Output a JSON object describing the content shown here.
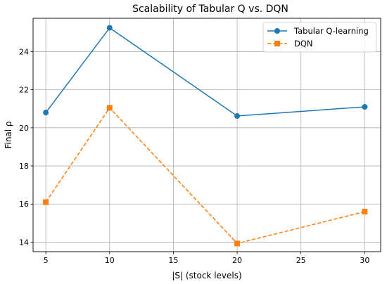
{
  "chart_data": {
    "type": "line",
    "title": "Scalability of Tabular Q vs. DQN",
    "xlabel": "|S| (stock levels)",
    "ylabel": "Final ρ",
    "x": [
      5,
      10,
      20,
      30
    ],
    "xlim": [
      4,
      31.25
    ],
    "ylim": [
      13.5,
      25.75
    ],
    "xticks": [
      5,
      10,
      15,
      20,
      25,
      30
    ],
    "yticks": [
      14,
      16,
      18,
      20,
      22,
      24
    ],
    "grid": true,
    "legend_position": "top-right",
    "series": [
      {
        "name": "Tabular Q-learning",
        "values": [
          20.8,
          25.25,
          20.62,
          21.1
        ],
        "color": "#1f77b4",
        "marker": "circle",
        "linestyle": "solid"
      },
      {
        "name": "DQN",
        "values": [
          16.1,
          21.05,
          13.93,
          15.6
        ],
        "color": "#ff7f0e",
        "marker": "square",
        "linestyle": "dashed"
      }
    ]
  }
}
